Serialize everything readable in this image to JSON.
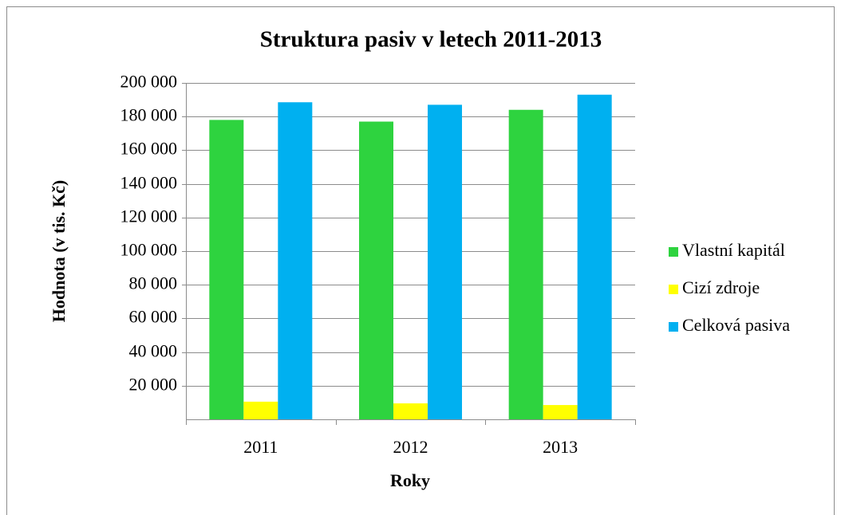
{
  "chart_data": {
    "type": "bar",
    "title": "Struktura pasiv v letech 2011-2013",
    "x_label": "Roky",
    "y_label": "Hodnota (v tis. Kč)",
    "categories": [
      "2011",
      "2012",
      "2013"
    ],
    "series": [
      {
        "name": "Vlastní kapitál",
        "color": "#2ed33f",
        "values": [
          178000,
          177000,
          184000
        ]
      },
      {
        "name": "Cizí zdroje",
        "color": "#ffff00",
        "values": [
          10500,
          9500,
          8500
        ]
      },
      {
        "name": "Celková pasiva",
        "color": "#00b0f0",
        "values": [
          188500,
          187000,
          193000
        ]
      }
    ],
    "ylim": [
      0,
      200000
    ],
    "yticks": [
      {
        "value": 20000,
        "label": "20 000"
      },
      {
        "value": 40000,
        "label": "40 000"
      },
      {
        "value": 60000,
        "label": "60 000"
      },
      {
        "value": 80000,
        "label": "80 000"
      },
      {
        "value": 100000,
        "label": "100 000"
      },
      {
        "value": 120000,
        "label": "120 000"
      },
      {
        "value": 140000,
        "label": "140 000"
      },
      {
        "value": 160000,
        "label": "160 000"
      },
      {
        "value": 180000,
        "label": "180 000"
      },
      {
        "value": 200000,
        "label": "200 000"
      }
    ],
    "grid": true,
    "legend": "right"
  }
}
